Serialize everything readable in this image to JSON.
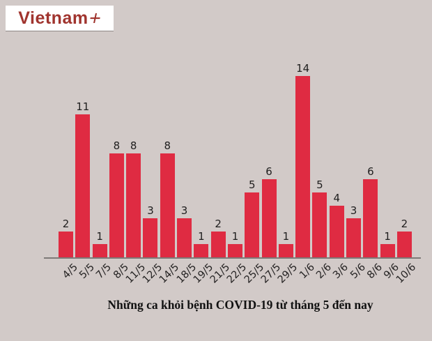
{
  "app": {
    "background_color": "#D2CAC8"
  },
  "logo": {
    "text": "Vietnam",
    "plus": "+",
    "text_color": "#A0342E",
    "box_color": "#FFFFFF"
  },
  "chart_data": {
    "type": "bar",
    "categories": [
      "4/5",
      "5/5",
      "7/5",
      "8/5",
      "11/5",
      "12/5",
      "14/5",
      "18/5",
      "19/5",
      "21/5",
      "22/5",
      "25/5",
      "27/5",
      "29/5",
      "1/6",
      "2/6",
      "3/6",
      "5/6",
      "8/6",
      "9/6",
      "10/6"
    ],
    "values": [
      2,
      11,
      1,
      8,
      8,
      3,
      8,
      3,
      1,
      2,
      1,
      5,
      6,
      1,
      14,
      5,
      4,
      3,
      6,
      1,
      2
    ],
    "title": "Những ca khỏi bệnh COVID-19 từ tháng 5 đến nay",
    "xlabel": "",
    "ylabel": "",
    "ylim": [
      0,
      14
    ],
    "bar_color": "#DF2B42",
    "value_labels_shown": true,
    "x_tick_rotation_deg": -45,
    "grid": false,
    "legend": "none"
  }
}
